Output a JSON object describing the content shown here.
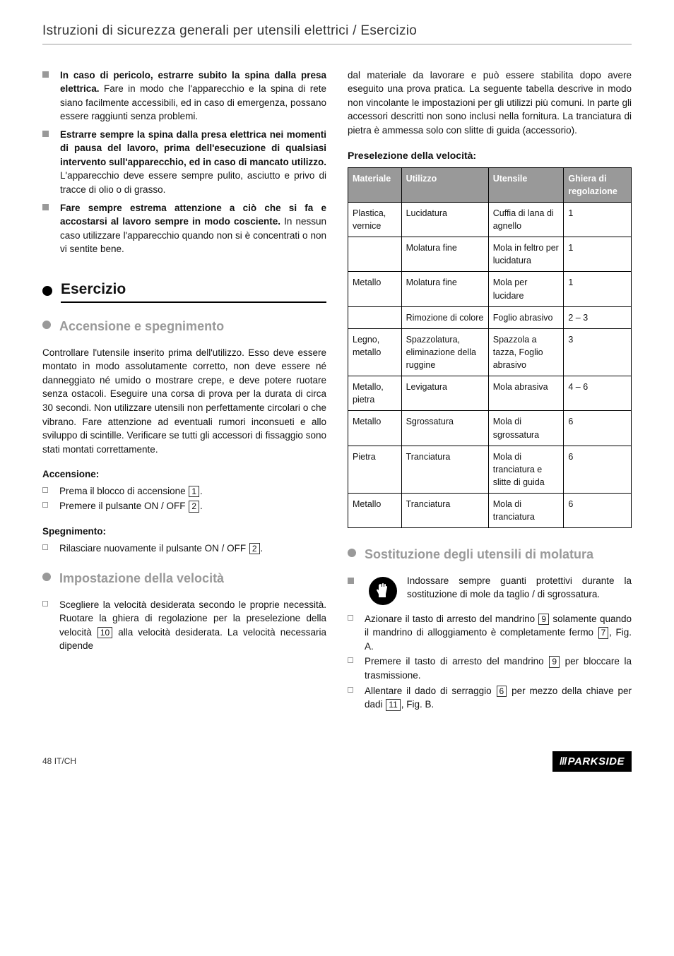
{
  "header": {
    "title": "Istruzioni di sicurezza generali per utensili elettrici / Esercizio"
  },
  "left": {
    "bullets": [
      {
        "bold": "In caso di pericolo, estrarre subito la spina dalla presa elettrica.",
        "rest": " Fare in modo che l'apparecchio e la spina di rete siano facilmente accessibili, ed in caso di emergenza, possano essere raggiunti senza problemi."
      },
      {
        "bold": "Estrarre sempre la spina dalla presa elettrica nei momenti di pausa del lavoro, prima dell'esecuzione di qualsiasi intervento sull'apparecchio, ed in caso di mancato utilizzo.",
        "rest": " L'apparecchio deve essere sempre pulito, asciutto e privo di tracce di olio o di grasso."
      },
      {
        "bold": "Fare sempre estrema attenzione a ciò che si fa e accostarsi al lavoro sempre in modo cosciente.",
        "rest": " In nessun caso utilizzare l'apparecchio quando non si è concentrati o non vi sentite bene."
      }
    ],
    "sec_esercizio": "Esercizio",
    "sub_accensione": "Accensione e spegnimento",
    "para1": "Controllare l'utensile inserito prima dell'utilizzo. Esso deve essere montato in modo assolutamente corretto, non deve essere né danneggiato né umido o mostrare crepe, e deve potere ruotare senza ostacoli. Eseguire una corsa di prova per la durata di circa 30 secondi. Non utilizzare utensili non perfettamente circolari o che vibrano. Fare attenzione ad eventuali rumori inconsueti e allo sviluppo di scintille. Verificare se tutti gli accessori di fissaggio sono stati montati correttamente.",
    "accensione_h": "Accensione:",
    "acc1a": "Prema il blocco di accensione ",
    "acc1n": "1",
    "acc1b": ".",
    "acc2a": "Premere il pulsante ON / OFF ",
    "acc2n": "2",
    "acc2b": ".",
    "spegn_h": "Spegnimento:",
    "sp1a": "Rilasciare nuovamente il pulsante ON / OFF ",
    "sp1n": "2",
    "sp1b": ".",
    "sub_velocita": "Impostazione della velocità",
    "vel_a": "Scegliere la velocità desiderata secondo le proprie necessità. Ruotare la ghiera di regolazione per la preselezione della velocità ",
    "vel_n": "10",
    "vel_b": " alla velocità desiderata. La velocità necessaria dipende"
  },
  "right": {
    "intro": "dal materiale da lavorare e può essere stabilita dopo avere eseguito una prova pratica. La seguente tabella descrive in modo non vincolante le impostazioni per gli utilizzi più comuni. In parte gli accessori descritti non sono inclusi nella fornitura. La tranciatura di pietra è ammessa solo con slitte di guida (accessorio).",
    "presel_h": "Preselezione della velocità:",
    "th": {
      "c1": "Materiale",
      "c2": "Utilizzo",
      "c3": "Utensile",
      "c4": "Ghiera di regolazione"
    },
    "rows": [
      {
        "c1": "Plastica, vernice",
        "c2": "Lucidatura",
        "c3": "Cuffia di lana di agnello",
        "c4": "1"
      },
      {
        "c1": "",
        "c2": "Molatura fine",
        "c3": "Mola in feltro per lucidatura",
        "c4": "1"
      },
      {
        "c1": "Metallo",
        "c2": "Molatura fine",
        "c3": "Mola per lucidare",
        "c4": "1"
      },
      {
        "c1": "",
        "c2": "Rimozione di colore",
        "c3": "Foglio abrasivo",
        "c4": "2 – 3"
      },
      {
        "c1": "Legno, metallo",
        "c2": "Spazzolatura, eliminazione della ruggine",
        "c3": "Spazzola a tazza, Foglio abrasivo",
        "c4": "3"
      },
      {
        "c1": "Metallo, pietra",
        "c2": "Levigatura",
        "c3": "Mola abrasiva",
        "c4": "4 – 6"
      },
      {
        "c1": "Metallo",
        "c2": "Sgrossatura",
        "c3": "Mola di sgrossatura",
        "c4": "6"
      },
      {
        "c1": "Pietra",
        "c2": "Tranciatura",
        "c3": "Mola di tranciatura e slitte di guida",
        "c4": "6"
      },
      {
        "c1": "Metallo",
        "c2": "Tranciatura",
        "c3": "Mola di tranciatura",
        "c4": "6"
      }
    ],
    "sub_sost": "Sostituzione degli utensili di molatura",
    "glove_text": "Indossare sempre guanti protettivi durante la sostituzione di mole da taglio / di sgrossatura.",
    "s1a": "Azionare il tasto di arresto del mandrino ",
    "s1n": "9",
    "s1b": " solamente quando il mandrino di alloggiamento è completamente fermo ",
    "s1n2": "7",
    "s1c": ", Fig. A.",
    "s2a": "Premere il tasto di arresto del mandrino ",
    "s2n": "9",
    "s2b": " per bloccare la trasmissione.",
    "s3a": "Allentare il dado di serraggio ",
    "s3n": "6",
    "s3b": " per mezzo della chiave per dadi ",
    "s3n2": "11",
    "s3c": ", Fig. B."
  },
  "footer": {
    "page_prefix": "48",
    "page_locale": "IT/CH",
    "brand": "PARKSIDE"
  }
}
